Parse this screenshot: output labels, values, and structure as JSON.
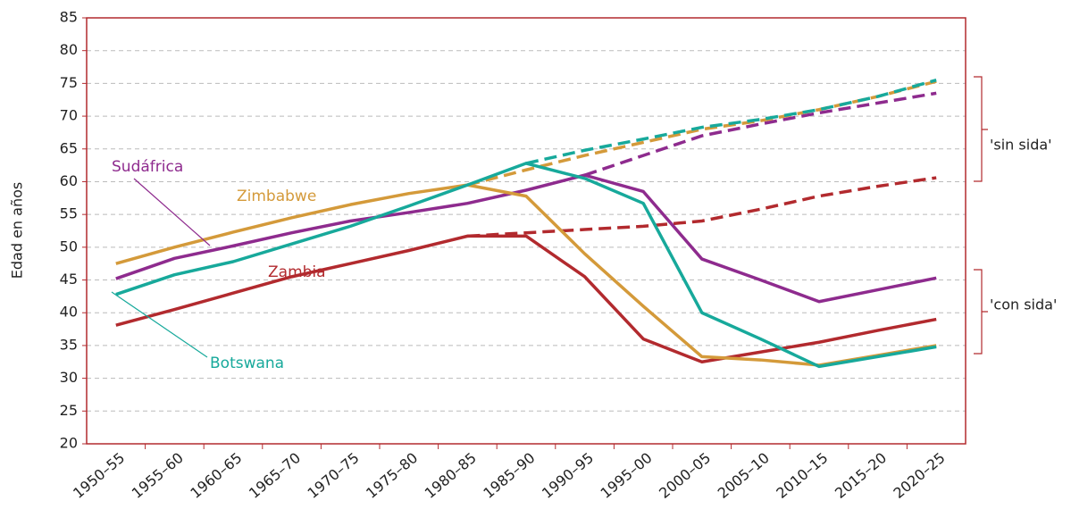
{
  "chart_data": {
    "type": "line",
    "y_label": "Edad en años",
    "categories": [
      "1950–55",
      "1955–60",
      "1960–65",
      "1965–70",
      "1970–75",
      "1975–80",
      "1980–85",
      "1985–90",
      "1990–95",
      "1995–00",
      "2000–05",
      "2005–10",
      "2010–15",
      "2015–20",
      "2020–25"
    ],
    "series": [
      {
        "name": "Zambia",
        "color": "#b22a2e",
        "values": [
          38.1,
          40.5,
          43,
          45.5,
          47.5,
          49.5,
          51.7,
          51.7,
          45.5,
          36,
          32.5,
          34,
          35.5,
          37.3,
          39
        ],
        "values_sin_sida": [
          null,
          null,
          null,
          null,
          null,
          null,
          51.7,
          52.2,
          52.7,
          53.2,
          54,
          55.8,
          57.8,
          59.3,
          60.6
        ]
      },
      {
        "name": "Sudáfrica",
        "color": "#8e2b8e",
        "values": [
          45.2,
          48.3,
          50.2,
          52.2,
          54,
          55.3,
          56.7,
          58.7,
          61,
          58.5,
          48.2,
          45,
          41.7,
          43.5,
          45.3
        ],
        "values_sin_sida": [
          null,
          null,
          null,
          null,
          null,
          null,
          null,
          null,
          61,
          64,
          67,
          68.8,
          70.5,
          72,
          73.5
        ]
      },
      {
        "name": "Zimbabwe",
        "color": "#d49a3a",
        "values": [
          47.5,
          50,
          52.3,
          54.5,
          56.5,
          58.2,
          59.5,
          57.8,
          49,
          41,
          33.3,
          32.8,
          32,
          33.5,
          35
        ],
        "values_sin_sida": [
          null,
          null,
          null,
          null,
          null,
          null,
          59.5,
          61.8,
          64,
          66,
          68,
          69.3,
          71,
          73,
          75.3
        ]
      },
      {
        "name": "Botswana",
        "color": "#17a99b",
        "values": [
          42.8,
          45.8,
          47.8,
          50.5,
          53.2,
          56.3,
          59.5,
          62.8,
          60.5,
          56.7,
          40,
          36,
          31.8,
          33.3,
          34.8
        ],
        "values_sin_sida": [
          null,
          null,
          null,
          null,
          null,
          null,
          null,
          62.8,
          64.8,
          66.5,
          68.3,
          69.5,
          71,
          73,
          75.5
        ]
      }
    ],
    "annotations": [
      "'sin sida'",
      "'con sida'"
    ],
    "ylim": [
      20,
      85
    ],
    "yticks": [
      20,
      25,
      30,
      35,
      40,
      45,
      50,
      55,
      60,
      65,
      70,
      75,
      80,
      85
    ],
    "grid": true,
    "frame_color": "#b22a2e"
  }
}
